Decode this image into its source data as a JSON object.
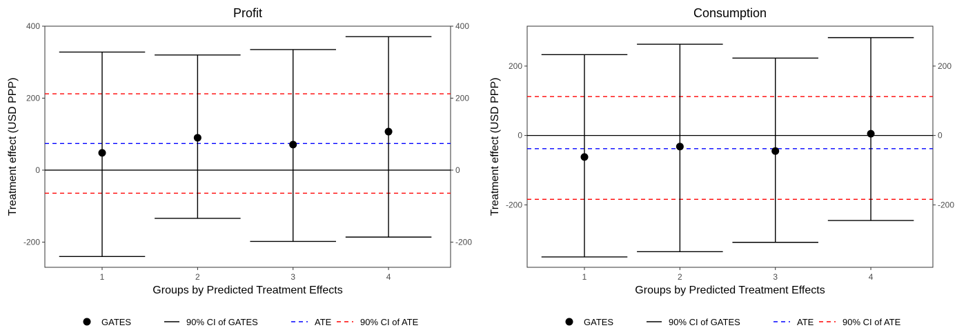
{
  "colors": {
    "gates": "#000000",
    "ci_gates": "#000000",
    "ate": "#0000ff",
    "ci_ate": "#ff0000",
    "zero_line": "#000000",
    "panel_border": "#333333",
    "tick_text": "#4d4d4d"
  },
  "legend": {
    "position": "bottom",
    "items": [
      {
        "key": "gates",
        "label": "GATES",
        "style": "point"
      },
      {
        "key": "ci_gates",
        "label": "90% CI of GATES",
        "style": "solid-line"
      },
      {
        "key": "ate",
        "label": "ATE",
        "style": "dashed-line"
      },
      {
        "key": "ci_ate",
        "label": "90% CI of ATE",
        "style": "dashed-line"
      }
    ]
  },
  "chart_data": [
    {
      "type": "scatter",
      "title": "Profit",
      "xlabel": "Groups by Predicted Treatment Effects",
      "ylabel": "Treatment effect (USD PPP)",
      "x_ticks": [
        "1",
        "2",
        "3",
        "4"
      ],
      "y_ticks": [
        -200,
        0,
        200,
        400
      ],
      "y_ticks_right": [
        -200,
        0,
        200,
        400
      ],
      "y_tick_labels": [
        "-200",
        "0",
        "200",
        "400"
      ],
      "xlim": [
        0.4,
        4.65
      ],
      "ylim": [
        -270,
        400
      ],
      "grid": false,
      "secondary_y_axis": true,
      "gates": [
        {
          "group": 1,
          "estimate": 48,
          "ci_low": -240,
          "ci_high": 328
        },
        {
          "group": 2,
          "estimate": 90,
          "ci_low": -134,
          "ci_high": 320
        },
        {
          "group": 3,
          "estimate": 71,
          "ci_low": -198,
          "ci_high": 335
        },
        {
          "group": 4,
          "estimate": 107,
          "ci_low": -186,
          "ci_high": 371
        }
      ],
      "ate": 74,
      "ate_ci": [
        -64,
        212
      ],
      "zero_line": 0
    },
    {
      "type": "scatter",
      "title": "Consumption",
      "xlabel": "Groups by Predicted Treatment Effects",
      "ylabel": "Treatment effect (USD PPP)",
      "x_ticks": [
        "1",
        "2",
        "3",
        "4"
      ],
      "y_ticks": [
        -200,
        0,
        200
      ],
      "y_ticks_right": [
        -200,
        0,
        200
      ],
      "y_tick_labels": [
        "-200",
        "0",
        "200"
      ],
      "xlim": [
        0.4,
        4.65
      ],
      "ylim": [
        -380,
        315
      ],
      "grid": false,
      "secondary_y_axis": true,
      "gates": [
        {
          "group": 1,
          "estimate": -62,
          "ci_low": -350,
          "ci_high": 233
        },
        {
          "group": 2,
          "estimate": -32,
          "ci_low": -335,
          "ci_high": 263
        },
        {
          "group": 3,
          "estimate": -45,
          "ci_low": -308,
          "ci_high": 223
        },
        {
          "group": 4,
          "estimate": 5,
          "ci_low": -245,
          "ci_high": 282
        }
      ],
      "ate": -38,
      "ate_ci": [
        -184,
        112
      ],
      "zero_line": 0
    }
  ]
}
